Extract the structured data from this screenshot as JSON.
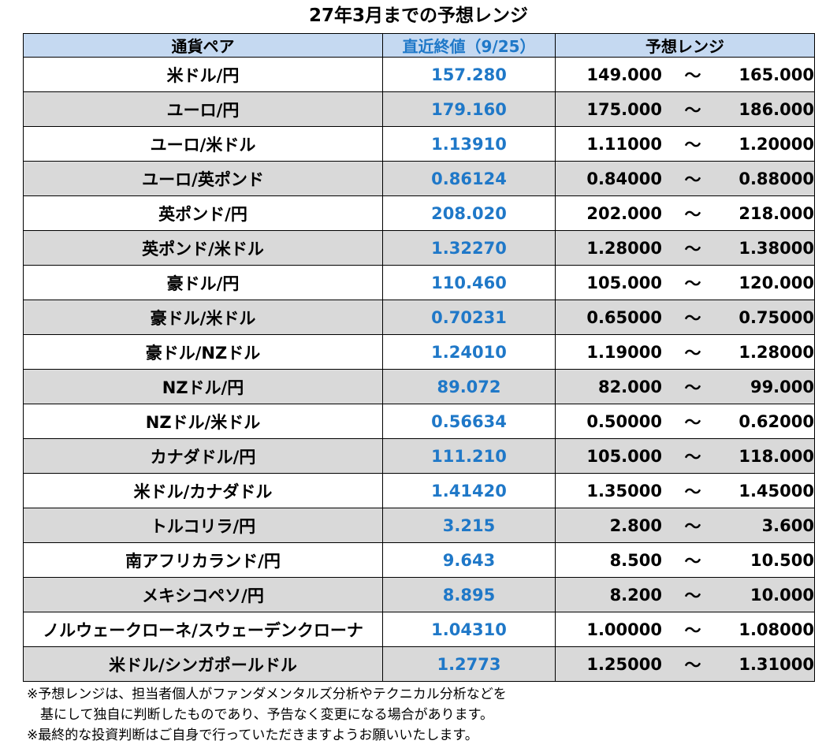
{
  "title": "27年3月までの予想レンジ",
  "headers": {
    "pair": "通貨ペア",
    "close": "直近終値（9/25）",
    "range": "予想レンジ"
  },
  "tilde": "～",
  "rows": [
    {
      "pair": "米ドル/円",
      "close": "157.280",
      "low": "149.000",
      "high": "165.000"
    },
    {
      "pair": "ユーロ/円",
      "close": "179.160",
      "low": "175.000",
      "high": "186.000"
    },
    {
      "pair": "ユーロ/米ドル",
      "close": "1.13910",
      "low": "1.11000",
      "high": "1.20000"
    },
    {
      "pair": "ユーロ/英ポンド",
      "close": "0.86124",
      "low": "0.84000",
      "high": "0.88000"
    },
    {
      "pair": "英ポンド/円",
      "close": "208.020",
      "low": "202.000",
      "high": "218.000"
    },
    {
      "pair": "英ポンド/米ドル",
      "close": "1.32270",
      "low": "1.28000",
      "high": "1.38000"
    },
    {
      "pair": "豪ドル/円",
      "close": "110.460",
      "low": "105.000",
      "high": "120.000"
    },
    {
      "pair": "豪ドル/米ドル",
      "close": "0.70231",
      "low": "0.65000",
      "high": "0.75000"
    },
    {
      "pair": "豪ドル/NZドル",
      "close": "1.24010",
      "low": "1.19000",
      "high": "1.28000"
    },
    {
      "pair": "NZドル/円",
      "close": "89.072",
      "low": "82.000",
      "high": "99.000"
    },
    {
      "pair": "NZドル/米ドル",
      "close": "0.56634",
      "low": "0.50000",
      "high": "0.62000"
    },
    {
      "pair": "カナダドル/円",
      "close": "111.210",
      "low": "105.000",
      "high": "118.000"
    },
    {
      "pair": "米ドル/カナダドル",
      "close": "1.41420",
      "low": "1.35000",
      "high": "1.45000"
    },
    {
      "pair": "トルコリラ/円",
      "close": "3.215",
      "low": "2.800",
      "high": "3.600"
    },
    {
      "pair": "南アフリカランド/円",
      "close": "9.643",
      "low": "8.500",
      "high": "10.500"
    },
    {
      "pair": "メキシコペソ/円",
      "close": "8.895",
      "low": "8.200",
      "high": "10.000"
    },
    {
      "pair": "ノルウェークローネ/スウェーデンクローナ",
      "close": "1.04310",
      "low": "1.00000",
      "high": "1.08000"
    },
    {
      "pair": "米ドル/シンガポールドル",
      "close": "1.2773",
      "low": "1.25000",
      "high": "1.31000"
    }
  ],
  "notes": [
    "※予想レンジは、担当者個人がファンダメンタルズ分析やテクニカル分析などを",
    "　基にして独自に判断したものであり、予告なく変更になる場合があります。",
    "※最終的な投資判断はご自身で行っていただきますようお願いいたします。"
  ],
  "colors": {
    "header_bg": "#c5d9f1",
    "close_text": "#1f78c8",
    "alt_row_bg": "#d9d9d9"
  }
}
